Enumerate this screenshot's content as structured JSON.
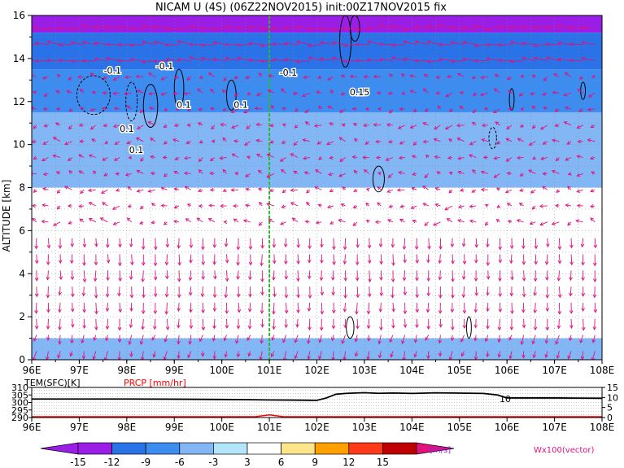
{
  "chart_data": [
    {
      "type": "heatmap",
      "title": "NICAM U (4S) (06Z22NOV2015) init:00Z17NOV2015 fix",
      "ylabel": "ALTITUDE [km]",
      "xlim": [
        96,
        108
      ],
      "ylim": [
        0,
        16
      ],
      "x_tick_labels": [
        "96E",
        "97E",
        "98E",
        "99E",
        "100E",
        "101E",
        "102E",
        "103E",
        "104E",
        "105E",
        "106E",
        "107E",
        "108E"
      ],
      "y_tick_labels": [
        "0",
        "2",
        "4",
        "6",
        "8",
        "10",
        "12",
        "14",
        "16"
      ],
      "y_ticks": [
        0,
        2,
        4,
        6,
        8,
        10,
        12,
        14,
        16
      ],
      "grid": true,
      "marker_line_x": 101,
      "approx_u_field_bands": [
        {
          "z_from": 15.2,
          "z_to": 16.0,
          "u": -16
        },
        {
          "z_from": 13.5,
          "z_to": 15.2,
          "u": -11
        },
        {
          "z_from": 11.5,
          "z_to": 13.5,
          "u": -8
        },
        {
          "z_from": 8.0,
          "z_to": 11.5,
          "u": -4
        },
        {
          "z_from": 0.0,
          "z_to": 1.0,
          "u": -4
        }
      ],
      "contour_labels": [
        "-0.1",
        "-0.1",
        "-0.1",
        "0.1",
        "0.1",
        "0.1",
        "0.1",
        "0.15"
      ],
      "vector_label": "Wx100(vector)"
    },
    {
      "type": "line",
      "left_label": "TEM(SFC)[K]",
      "right_label": "PRCP [mm/hr]",
      "xlim": [
        96,
        108
      ],
      "left_ylim": [
        290,
        310
      ],
      "left_ticks": [
        "310",
        "305",
        "300",
        "295",
        "290"
      ],
      "right_ylim": [
        0,
        15
      ],
      "right_ticks": [
        "15",
        "10",
        "5",
        "0"
      ],
      "x_tick_labels": [
        "96E",
        "97E",
        "98E",
        "99E",
        "100E",
        "101E",
        "102E",
        "103E",
        "104E",
        "105E",
        "106E",
        "107E",
        "108E"
      ],
      "series": [
        {
          "color": "#000000",
          "x": [
            96,
            97,
            98,
            99,
            100,
            100.5,
            101,
            101.5,
            102,
            102.2,
            102.4,
            102.6,
            102.8,
            103,
            103.3,
            103.6,
            104,
            104.5,
            105,
            105.5,
            105.8,
            106,
            106.5,
            107,
            107.5,
            108
          ],
          "y": [
            302.3,
            302.3,
            302.3,
            302.2,
            302.0,
            301.9,
            301.7,
            301.6,
            301.4,
            303.0,
            305.5,
            306.0,
            306.3,
            306.5,
            306.1,
            306.3,
            306.0,
            306.4,
            306.2,
            306.0,
            305.0,
            303.0,
            303.0,
            303.0,
            302.9,
            302.8
          ]
        },
        {
          "color": "#ff0000",
          "x": [
            96,
            100.7,
            101,
            101.3,
            108
          ],
          "y": [
            0,
            0,
            0.9,
            0,
            0
          ]
        }
      ],
      "annotations": [
        "10"
      ]
    }
  ],
  "colorbar": {
    "labels": [
      "-15",
      "-12",
      "-9",
      "-6",
      "-3",
      "3",
      "6",
      "9",
      "12",
      "15"
    ],
    "colors": [
      "#9a1ee6",
      "#2a72e8",
      "#3d8cf0",
      "#82b6f5",
      "#b4e6fb",
      "#ffffff",
      "#fde68a",
      "#ffa000",
      "#ff3a1a",
      "#c00000"
    ],
    "left_arrow_color": "#9a1ee6",
    "right_arrow_color": "#e0127e",
    "unit": "[m/s]"
  },
  "colors": {
    "vectors": "#e0127e",
    "contour": "#000000",
    "marker_line": "#2db82d"
  }
}
